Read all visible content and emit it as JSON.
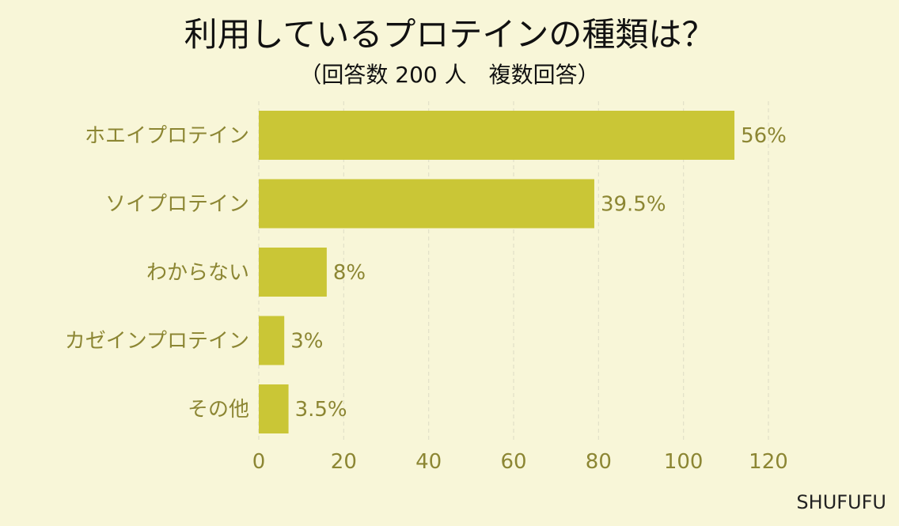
{
  "chart_data": {
    "type": "bar",
    "orientation": "horizontal",
    "title": "利用しているプロテインの種類は？",
    "subtitle": "（回答数 200 人　複数回答）",
    "categories": [
      "ホエイプロテイン",
      "ソイプロテイン",
      "わからない",
      "カゼインプロテイン",
      "その他"
    ],
    "values": [
      112,
      79,
      16,
      6,
      7
    ],
    "data_labels": [
      "56%",
      "39.5%",
      "8%",
      "3%",
      "3.5%"
    ],
    "xlim": [
      0,
      120
    ],
    "x_ticks": [
      0,
      20,
      40,
      60,
      80,
      100,
      120
    ],
    "xlabel": "",
    "ylabel": "",
    "grid": "vertical dashed",
    "legend": "none"
  },
  "brand": "SHUFUFU",
  "colors": {
    "background": "#f8f6d8",
    "bar": "#cac636",
    "label_text": "#8c8633",
    "grid": "#e2e0c8",
    "title": "#111111"
  }
}
